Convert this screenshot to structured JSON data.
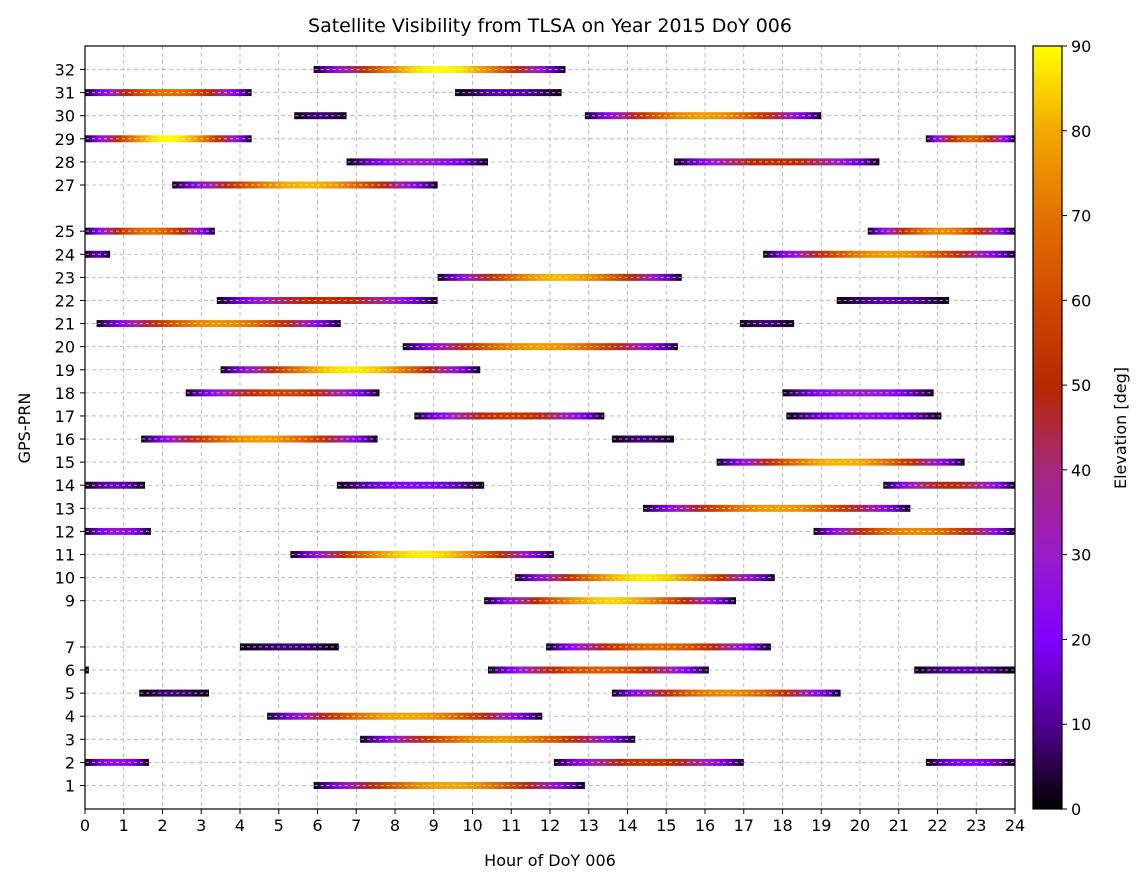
{
  "chart_data": {
    "type": "bar",
    "title": "Satellite Visibility from TLSA on Year 2015 DoY 006",
    "xlabel": "Hour of DoY 006",
    "ylabel": "GPS-PRN",
    "xlim": [
      0,
      24
    ],
    "x_ticks": [
      0,
      1,
      2,
      3,
      4,
      5,
      6,
      7,
      8,
      9,
      10,
      11,
      12,
      13,
      14,
      15,
      16,
      17,
      18,
      19,
      20,
      21,
      22,
      23,
      24
    ],
    "y_ticks": [
      1,
      2,
      3,
      4,
      5,
      6,
      7,
      9,
      10,
      11,
      12,
      13,
      14,
      15,
      16,
      17,
      18,
      19,
      20,
      21,
      22,
      23,
      24,
      25,
      27,
      28,
      29,
      30,
      31,
      32
    ],
    "grid": true,
    "colorbar": {
      "label": "Elevation [deg]",
      "min": 0,
      "max": 90,
      "ticks": [
        0,
        10,
        20,
        30,
        40,
        50,
        60,
        70,
        80,
        90
      ],
      "colormap": "gnuplot",
      "stops": [
        {
          "value": 0,
          "color": "#000000"
        },
        {
          "value": 10,
          "color": "#500090"
        },
        {
          "value": 20,
          "color": "#8000ff"
        },
        {
          "value": 30,
          "color": "#9b1bc9"
        },
        {
          "value": 40,
          "color": "#a5287c"
        },
        {
          "value": 50,
          "color": "#b82800"
        },
        {
          "value": 60,
          "color": "#d04a00"
        },
        {
          "value": 70,
          "color": "#e37200"
        },
        {
          "value": 80,
          "color": "#f3a800"
        },
        {
          "value": 90,
          "color": "#ffff00"
        }
      ]
    },
    "series": [
      {
        "prn": 1,
        "passes": [
          {
            "start": 5.9,
            "end": 12.9,
            "max_elev": 80
          }
        ]
      },
      {
        "prn": 2,
        "passes": [
          {
            "start": 0.0,
            "end": 1.65,
            "max_elev": 25
          },
          {
            "start": 12.1,
            "end": 17.0,
            "max_elev": 55
          },
          {
            "start": 21.7,
            "end": 24.0,
            "max_elev": 22
          }
        ]
      },
      {
        "prn": 3,
        "passes": [
          {
            "start": 7.1,
            "end": 14.2,
            "max_elev": 78
          }
        ]
      },
      {
        "prn": 4,
        "passes": [
          {
            "start": 4.7,
            "end": 11.8,
            "max_elev": 80
          }
        ]
      },
      {
        "prn": 5,
        "passes": [
          {
            "start": 1.4,
            "end": 3.2,
            "max_elev": 8
          },
          {
            "start": 13.6,
            "end": 19.5,
            "max_elev": 75
          }
        ]
      },
      {
        "prn": 6,
        "passes": [
          {
            "start": 0.0,
            "end": 0.1,
            "max_elev": 5
          },
          {
            "start": 10.4,
            "end": 16.1,
            "max_elev": 65
          },
          {
            "start": 21.4,
            "end": 24.0,
            "max_elev": 12
          }
        ]
      },
      {
        "prn": 7,
        "passes": [
          {
            "start": 4.0,
            "end": 6.55,
            "max_elev": 8
          },
          {
            "start": 11.9,
            "end": 17.7,
            "max_elev": 68
          }
        ]
      },
      {
        "prn": 9,
        "passes": [
          {
            "start": 10.3,
            "end": 16.8,
            "max_elev": 85
          }
        ]
      },
      {
        "prn": 10,
        "passes": [
          {
            "start": 11.1,
            "end": 17.8,
            "max_elev": 88
          }
        ]
      },
      {
        "prn": 11,
        "passes": [
          {
            "start": 5.3,
            "end": 12.1,
            "max_elev": 88
          }
        ]
      },
      {
        "prn": 12,
        "passes": [
          {
            "start": 0.0,
            "end": 1.7,
            "max_elev": 28
          },
          {
            "start": 18.8,
            "end": 24.0,
            "max_elev": 75
          }
        ]
      },
      {
        "prn": 13,
        "passes": [
          {
            "start": 14.4,
            "end": 21.3,
            "max_elev": 78
          }
        ]
      },
      {
        "prn": 14,
        "passes": [
          {
            "start": 0.0,
            "end": 1.55,
            "max_elev": 15
          },
          {
            "start": 6.5,
            "end": 10.3,
            "max_elev": 22
          },
          {
            "start": 20.6,
            "end": 24.0,
            "max_elev": 50
          }
        ]
      },
      {
        "prn": 15,
        "passes": [
          {
            "start": 16.3,
            "end": 22.7,
            "max_elev": 82
          }
        ]
      },
      {
        "prn": 16,
        "passes": [
          {
            "start": 1.45,
            "end": 7.55,
            "max_elev": 78
          },
          {
            "start": 13.6,
            "end": 15.2,
            "max_elev": 8
          }
        ]
      },
      {
        "prn": 17,
        "passes": [
          {
            "start": 8.5,
            "end": 13.4,
            "max_elev": 55
          },
          {
            "start": 18.1,
            "end": 22.1,
            "max_elev": 25
          }
        ]
      },
      {
        "prn": 18,
        "passes": [
          {
            "start": 2.6,
            "end": 7.6,
            "max_elev": 58
          },
          {
            "start": 18.0,
            "end": 21.9,
            "max_elev": 30
          }
        ]
      },
      {
        "prn": 19,
        "passes": [
          {
            "start": 3.5,
            "end": 10.2,
            "max_elev": 88
          }
        ]
      },
      {
        "prn": 20,
        "passes": [
          {
            "start": 8.2,
            "end": 15.3,
            "max_elev": 78
          }
        ]
      },
      {
        "prn": 21,
        "passes": [
          {
            "start": 0.3,
            "end": 6.6,
            "max_elev": 76
          },
          {
            "start": 16.9,
            "end": 18.3,
            "max_elev": 8
          }
        ]
      },
      {
        "prn": 22,
        "passes": [
          {
            "start": 3.4,
            "end": 9.1,
            "max_elev": 52
          },
          {
            "start": 19.4,
            "end": 22.3,
            "max_elev": 12
          }
        ]
      },
      {
        "prn": 23,
        "passes": [
          {
            "start": 9.1,
            "end": 15.4,
            "max_elev": 82
          }
        ]
      },
      {
        "prn": 24,
        "passes": [
          {
            "start": 0.0,
            "end": 0.65,
            "max_elev": 12
          },
          {
            "start": 17.5,
            "end": 24.0,
            "max_elev": 78
          }
        ]
      },
      {
        "prn": 25,
        "passes": [
          {
            "start": 0.0,
            "end": 3.35,
            "max_elev": 70
          },
          {
            "start": 20.2,
            "end": 24.0,
            "max_elev": 75
          }
        ]
      },
      {
        "prn": 27,
        "passes": [
          {
            "start": 2.25,
            "end": 9.1,
            "max_elev": 82
          }
        ]
      },
      {
        "prn": 28,
        "passes": [
          {
            "start": 6.75,
            "end": 10.4,
            "max_elev": 30
          },
          {
            "start": 15.2,
            "end": 20.5,
            "max_elev": 52
          }
        ]
      },
      {
        "prn": 29,
        "passes": [
          {
            "start": 0.0,
            "end": 4.3,
            "max_elev": 90
          },
          {
            "start": 21.7,
            "end": 24.0,
            "max_elev": 65
          }
        ]
      },
      {
        "prn": 30,
        "passes": [
          {
            "start": 5.4,
            "end": 6.75,
            "max_elev": 8
          },
          {
            "start": 12.9,
            "end": 19.0,
            "max_elev": 78
          }
        ]
      },
      {
        "prn": 31,
        "passes": [
          {
            "start": 0.0,
            "end": 4.3,
            "max_elev": 70
          },
          {
            "start": 9.55,
            "end": 12.3,
            "max_elev": 12
          }
        ]
      },
      {
        "prn": 32,
        "passes": [
          {
            "start": 5.9,
            "end": 12.4,
            "max_elev": 90
          }
        ]
      }
    ]
  }
}
